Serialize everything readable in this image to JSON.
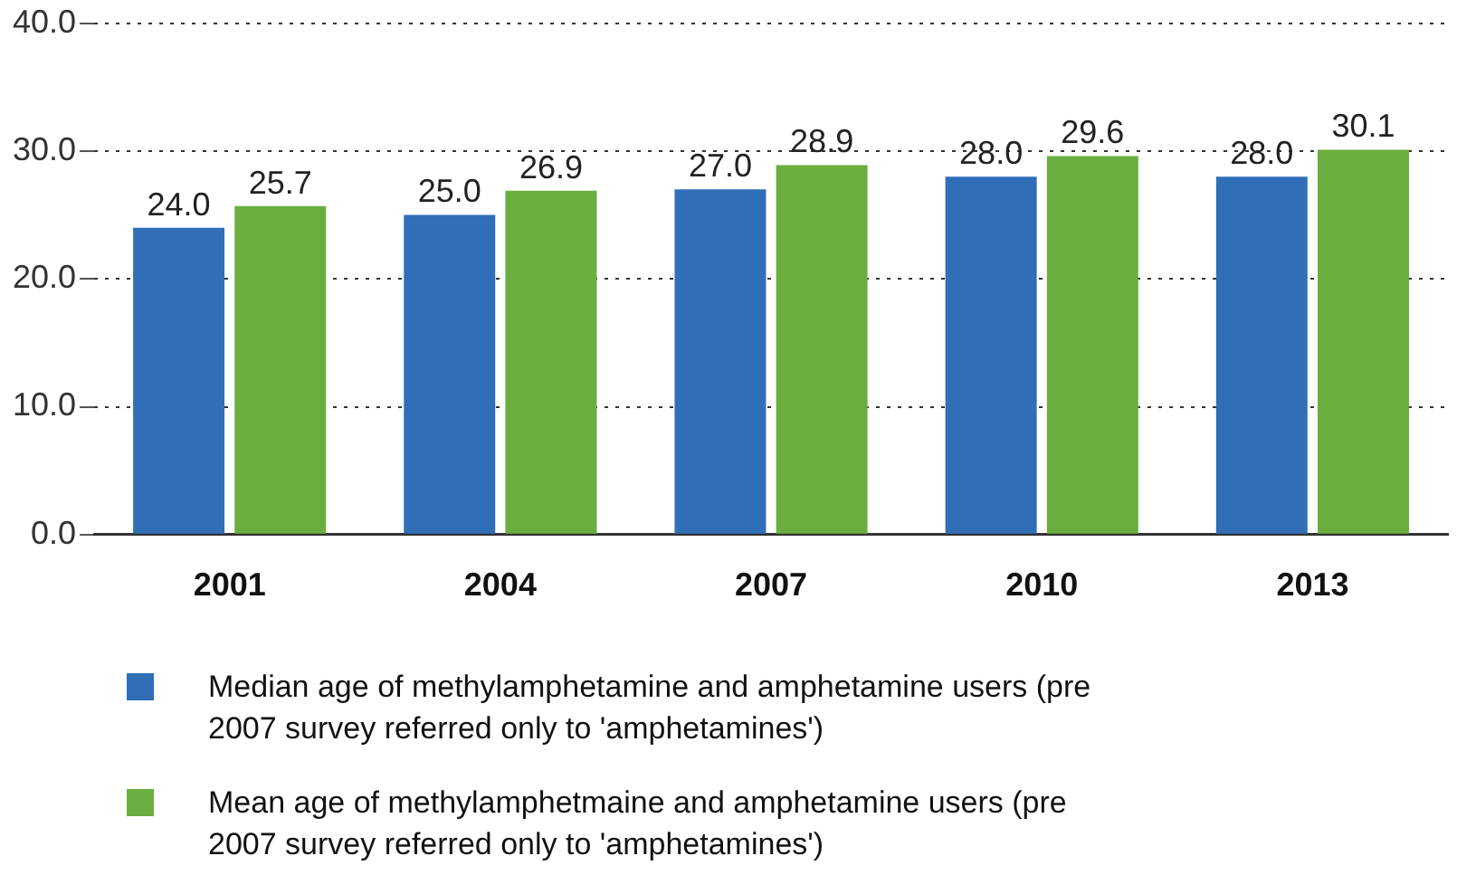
{
  "chart_data": {
    "type": "bar",
    "categories": [
      "2001",
      "2004",
      "2007",
      "2010",
      "2013"
    ],
    "series": [
      {
        "name": "Median age of methylamphetamine and amphetamine users (pre 2007 survey referred only to 'amphetamines')",
        "color": "#306fb8",
        "values": [
          24.0,
          25.0,
          27.0,
          28.0,
          28.0
        ],
        "value_labels": [
          "24.0",
          "25.0",
          "27.0",
          "28.0",
          "28.0"
        ]
      },
      {
        "name": "Mean age of methylamphetmaine and amphetamine users (pre 2007 survey referred only to 'amphetamines')",
        "color": "#6aae3f",
        "values": [
          25.7,
          26.9,
          28.9,
          29.6,
          30.1
        ],
        "value_labels": [
          "25.7",
          "26.9",
          "28.9",
          "29.6",
          "30.1"
        ]
      }
    ],
    "ylim": [
      0,
      40
    ],
    "yticks": [
      {
        "value": 0,
        "label": "0.0"
      },
      {
        "value": 10,
        "label": "10.0"
      },
      {
        "value": 20,
        "label": "20.0"
      },
      {
        "value": 30,
        "label": "30.0"
      },
      {
        "value": 40,
        "label": "40.0"
      }
    ],
    "grid": "y",
    "legend": "bottom"
  }
}
